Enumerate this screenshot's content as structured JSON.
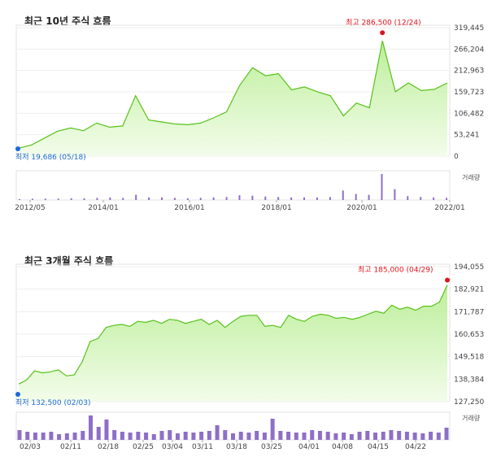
{
  "chart_data": [
    {
      "type": "area",
      "title": "최근 10년 주식 흐름",
      "ylim": [
        0,
        319445
      ],
      "yticks": [
        "319,445",
        "266,204",
        "212,963",
        "159,723",
        "106,482",
        "53,241",
        "0"
      ],
      "ytick_values": [
        319445,
        266204,
        212963,
        159723,
        106482,
        53241,
        0
      ],
      "xticks": [
        "2012/05",
        "2014/01",
        "2016/01",
        "2018/01",
        "2020/01",
        "2022/01"
      ],
      "high_label": "최고 286,500 (12/24)",
      "low_label": "최저 19,686 (05/18)",
      "volume_label": "거래량",
      "x": [
        "2012/05",
        "2012/09",
        "2013/01",
        "2013/05",
        "2013/09",
        "2014/01",
        "2014/05",
        "2014/09",
        "2015/01",
        "2015/05",
        "2015/09",
        "2016/01",
        "2016/05",
        "2016/09",
        "2017/01",
        "2017/05",
        "2017/09",
        "2018/01",
        "2018/03",
        "2018/05",
        "2018/09",
        "2019/01",
        "2019/05",
        "2019/09",
        "2020/01",
        "2020/03",
        "2020/06",
        "2020/09",
        "2020/12",
        "2021/01",
        "2021/04",
        "2021/08",
        "2021/12",
        "2022/03"
      ],
      "values": [
        19686,
        28000,
        45000,
        62000,
        70000,
        63000,
        82000,
        72000,
        75000,
        150000,
        90000,
        85000,
        80000,
        78000,
        82000,
        95000,
        110000,
        175000,
        220000,
        200000,
        205000,
        165000,
        172000,
        160000,
        150000,
        100000,
        132000,
        120000,
        286500,
        160000,
        182000,
        163000,
        166000,
        182000
      ],
      "volume": [
        2,
        3,
        3,
        3,
        4,
        4,
        5,
        6,
        5,
        12,
        6,
        6,
        5,
        4,
        5,
        6,
        7,
        11,
        10,
        8,
        7,
        6,
        6,
        6,
        7,
        22,
        14,
        12,
        60,
        25,
        9,
        7,
        6,
        5
      ],
      "color": "#58c21a"
    },
    {
      "type": "area",
      "title": "최근 3개월 주식 흐름",
      "ylim": [
        127250,
        194055
      ],
      "yticks": [
        "194,055",
        "182,921",
        "171,787",
        "160,653",
        "149,518",
        "138,384",
        "127,250"
      ],
      "ytick_values": [
        194055,
        182921,
        171787,
        160653,
        149518,
        138384,
        127250
      ],
      "xticks": [
        "02/03",
        "02/11",
        "02/18",
        "02/25",
        "03/04",
        "03/11",
        "03/18",
        "03/25",
        "04/01",
        "04/08",
        "04/15",
        "04/22"
      ],
      "high_label": "최고 185,000 (04/29)",
      "low_label": "최저 132,500 (02/03)",
      "volume_label": "거래량",
      "values": [
        136000,
        138000,
        142500,
        141500,
        142000,
        143000,
        140000,
        140500,
        147000,
        157000,
        158500,
        164000,
        165000,
        165500,
        164500,
        167000,
        166500,
        167500,
        166000,
        168000,
        167500,
        166000,
        167000,
        168000,
        165500,
        167500,
        164000,
        167000,
        169500,
        170000,
        170000,
        164500,
        165000,
        164000,
        170000,
        168000,
        167000,
        169500,
        170500,
        170000,
        168500,
        169000,
        168000,
        169000,
        170500,
        172000,
        171000,
        175000,
        173000,
        174000,
        172500,
        174500,
        174500,
        176500,
        185000
      ],
      "volume": [
        12,
        10,
        9,
        9,
        10,
        7,
        8,
        9,
        11,
        30,
        16,
        25,
        12,
        10,
        9,
        10,
        9,
        7,
        11,
        12,
        8,
        10,
        9,
        10,
        11,
        18,
        12,
        8,
        10,
        9,
        11,
        9,
        26,
        11,
        10,
        9,
        9,
        12,
        11,
        10,
        8,
        9,
        7,
        10,
        11,
        9,
        10,
        12,
        11,
        10,
        9,
        8,
        10,
        9,
        15
      ],
      "color": "#58c21a"
    }
  ]
}
